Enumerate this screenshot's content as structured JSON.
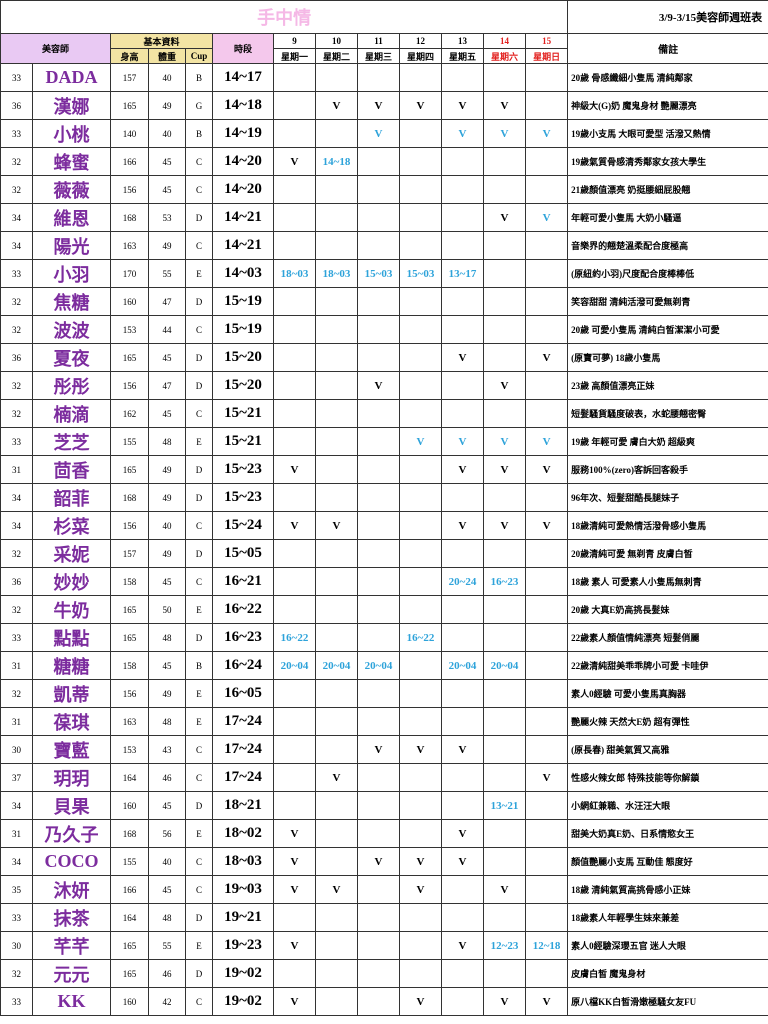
{
  "header": {
    "title": "手中情",
    "week": "3/9-3/15美容師週班表",
    "col_name": "美容師",
    "basic": "基本資料",
    "height": "身高",
    "weight": "體重",
    "cup": "Cup",
    "slot": "時段",
    "dates": [
      "9",
      "10",
      "11",
      "12",
      "13",
      "14",
      "15"
    ],
    "weekdays": [
      "星期一",
      "星期二",
      "星期三",
      "星期四",
      "星期五",
      "星期六",
      "星期日"
    ],
    "notes": "備註",
    "highlight_color": "#2ea3da"
  },
  "rows": [
    {
      "no": "33",
      "name": "DADA",
      "height": "157",
      "weight": "40",
      "cup": "B",
      "time": "14~17",
      "days": [
        null,
        null,
        null,
        null,
        null,
        null,
        null
      ],
      "blue": [],
      "note": "20歲 骨感纖細小隻馬 清純鄰家"
    },
    {
      "no": "36",
      "name": "漢娜",
      "height": "165",
      "weight": "49",
      "cup": "G",
      "time": "14~18",
      "days": [
        null,
        "V",
        "V",
        "V",
        "V",
        "V",
        null
      ],
      "blue": [],
      "note": "神級大(G)奶 魔鬼身材 艷麗漂亮"
    },
    {
      "no": "33",
      "name": "小桃",
      "height": "140",
      "weight": "40",
      "cup": "B",
      "time": "14~19",
      "days": [
        null,
        null,
        "V",
        null,
        "V",
        "V",
        "V"
      ],
      "blue": [
        2,
        4,
        5,
        6
      ],
      "note": "19歲小支馬 大眼可愛型  活潑又熱情"
    },
    {
      "no": "32",
      "name": "蜂蜜",
      "height": "166",
      "weight": "45",
      "cup": "C",
      "time": "14~20",
      "days": [
        "V",
        "14~18",
        null,
        null,
        null,
        null,
        null
      ],
      "blue": [
        1
      ],
      "note": "19歲氣質骨感清秀鄰家女孩大學生"
    },
    {
      "no": "32",
      "name": "薇薇",
      "height": "156",
      "weight": "45",
      "cup": "C",
      "time": "14~20",
      "days": [
        null,
        null,
        null,
        null,
        null,
        null,
        null
      ],
      "blue": [],
      "note": "21歲顏值漂亮 奶挺腰細屁股翹"
    },
    {
      "no": "34",
      "name": "維恩",
      "height": "168",
      "weight": "53",
      "cup": "D",
      "time": "14~21",
      "days": [
        null,
        null,
        null,
        null,
        null,
        "V",
        "V"
      ],
      "blue": [
        6
      ],
      "note": "年輕可愛小隻馬 大奶小騷逼"
    },
    {
      "no": "34",
      "name": "陽光",
      "height": "163",
      "weight": "49",
      "cup": "C",
      "time": "14~21",
      "days": [
        null,
        null,
        null,
        null,
        null,
        null,
        null
      ],
      "blue": [],
      "note": "音樂界的翹楚溫柔配合度極高"
    },
    {
      "no": "33",
      "name": "小羽",
      "height": "170",
      "weight": "55",
      "cup": "E",
      "time": "14~03",
      "days": [
        "18~03",
        "18~03",
        "15~03",
        "15~03",
        "13~17",
        null,
        null
      ],
      "blue": [
        0,
        1,
        2,
        3,
        4
      ],
      "note": "(原紐約小羽)尺度配合度棒棒低"
    },
    {
      "no": "32",
      "name": "焦糖",
      "height": "160",
      "weight": "47",
      "cup": "D",
      "time": "15~19",
      "days": [
        null,
        null,
        null,
        null,
        null,
        null,
        null
      ],
      "blue": [],
      "note": "笑容甜甜 清純活潑可愛無剃青"
    },
    {
      "no": "32",
      "name": "波波",
      "height": "153",
      "weight": "44",
      "cup": "C",
      "time": "15~19",
      "days": [
        null,
        null,
        null,
        null,
        null,
        null,
        null
      ],
      "blue": [],
      "note": "20歲 可愛小隻馬 清純白皙潔潔小可愛"
    },
    {
      "no": "36",
      "name": "夏夜",
      "height": "165",
      "weight": "45",
      "cup": "D",
      "time": "15~20",
      "days": [
        null,
        null,
        null,
        null,
        "V",
        null,
        "V"
      ],
      "blue": [],
      "note": "(原寶可夢) 18歲小隻馬"
    },
    {
      "no": "32",
      "name": "彤彤",
      "height": "156",
      "weight": "47",
      "cup": "D",
      "time": "15~20",
      "days": [
        null,
        null,
        "V",
        null,
        null,
        "V",
        null
      ],
      "blue": [],
      "note": "23歲 高顏值漂亮正妹"
    },
    {
      "no": "32",
      "name": "楠滴",
      "height": "162",
      "weight": "45",
      "cup": "C",
      "time": "15~21",
      "days": [
        null,
        null,
        null,
        null,
        null,
        null,
        null
      ],
      "blue": [],
      "note": "短髮騷貨騷度破表，水蛇腰翹密臀"
    },
    {
      "no": "33",
      "name": "芝芝",
      "height": "155",
      "weight": "48",
      "cup": "E",
      "time": "15~21",
      "days": [
        null,
        null,
        null,
        "V",
        "V",
        "V",
        "V"
      ],
      "blue": [
        3,
        4,
        5,
        6
      ],
      "note": "19歲 年輕可愛 膚白大奶 超級爽"
    },
    {
      "no": "31",
      "name": "茴香",
      "height": "165",
      "weight": "49",
      "cup": "D",
      "time": "15~23",
      "days": [
        "V",
        null,
        null,
        null,
        "V",
        "V",
        "V"
      ],
      "blue": [],
      "note": "服務100%(zero)客訴回客殺手"
    },
    {
      "no": "34",
      "name": "韶菲",
      "height": "168",
      "weight": "49",
      "cup": "D",
      "time": "15~23",
      "days": [
        null,
        null,
        null,
        null,
        null,
        null,
        null
      ],
      "blue": [],
      "note": "96年次、短髮甜酷長腿妹子"
    },
    {
      "no": "34",
      "name": "杉菜",
      "height": "156",
      "weight": "40",
      "cup": "C",
      "time": "15~24",
      "days": [
        "V",
        "V",
        null,
        null,
        "V",
        "V",
        "V"
      ],
      "blue": [],
      "note": "18歲清純可愛熱情活潑骨感小隻馬"
    },
    {
      "no": "32",
      "name": "采妮",
      "height": "157",
      "weight": "49",
      "cup": "D",
      "time": "15~05",
      "days": [
        null,
        null,
        null,
        null,
        null,
        null,
        null
      ],
      "blue": [],
      "note": "20歲清純可愛 無剃青 皮膚白皙"
    },
    {
      "no": "36",
      "name": "妙妙",
      "height": "158",
      "weight": "45",
      "cup": "C",
      "time": "16~21",
      "days": [
        null,
        null,
        null,
        null,
        "20~24",
        "16~23",
        null
      ],
      "blue": [
        4,
        5
      ],
      "note": "18歲 素人 可愛素人小隻馬無刺青"
    },
    {
      "no": "32",
      "name": "牛奶",
      "height": "165",
      "weight": "50",
      "cup": "E",
      "time": "16~22",
      "days": [
        null,
        null,
        null,
        null,
        null,
        null,
        null
      ],
      "blue": [],
      "note": "20歲 大真E奶高挑長髮妹"
    },
    {
      "no": "33",
      "name": "點點",
      "height": "165",
      "weight": "48",
      "cup": "D",
      "time": "16~23",
      "days": [
        "16~22",
        null,
        null,
        "16~22",
        null,
        null,
        null
      ],
      "blue": [
        0,
        3
      ],
      "note": "22歲素人顏值情純漂亮 短髮俏麗"
    },
    {
      "no": "31",
      "name": "糖糖",
      "height": "158",
      "weight": "45",
      "cup": "B",
      "time": "16~24",
      "days": [
        "20~04",
        "20~04",
        "20~04",
        null,
        "20~04",
        "20~04",
        null
      ],
      "blue": [
        0,
        1,
        2,
        4,
        5
      ],
      "note": "22歲清純甜美乖乖牌小可愛 卡哇伊"
    },
    {
      "no": "32",
      "name": "凱蒂",
      "height": "156",
      "weight": "49",
      "cup": "E",
      "time": "16~05",
      "days": [
        null,
        null,
        null,
        null,
        null,
        null,
        null
      ],
      "blue": [],
      "note": "素人0經驗 可愛小隻馬真胸器"
    },
    {
      "no": "31",
      "name": "葆琪",
      "height": "163",
      "weight": "48",
      "cup": "E",
      "time": "17~24",
      "days": [
        null,
        null,
        null,
        null,
        null,
        null,
        null
      ],
      "blue": [],
      "note": "艷麗火辣 天然大E奶 超有彈性"
    },
    {
      "no": "30",
      "name": "寶藍",
      "height": "153",
      "weight": "43",
      "cup": "C",
      "time": "17~24",
      "days": [
        null,
        null,
        "V",
        "V",
        "V",
        null,
        null
      ],
      "blue": [],
      "note": "(原長春) 甜美氣質又高雅"
    },
    {
      "no": "37",
      "name": "玥玥",
      "height": "164",
      "weight": "46",
      "cup": "C",
      "time": "17~24",
      "days": [
        null,
        "V",
        null,
        null,
        null,
        null,
        "V"
      ],
      "blue": [],
      "note": "性感火辣女郎 特殊技能等你解鎖"
    },
    {
      "no": "34",
      "name": "貝果",
      "height": "160",
      "weight": "45",
      "cup": "D",
      "time": "18~21",
      "days": [
        null,
        null,
        null,
        null,
        null,
        "13~21",
        null
      ],
      "blue": [
        5
      ],
      "note": "小網紅兼職、水汪汪大眼"
    },
    {
      "no": "31",
      "name": "乃久子",
      "height": "168",
      "weight": "56",
      "cup": "E",
      "time": "18~02",
      "days": [
        "V",
        null,
        null,
        null,
        "V",
        null,
        null
      ],
      "blue": [],
      "note": "甜美大奶真E奶、日系情慾女王"
    },
    {
      "no": "34",
      "name": "COCO",
      "height": "155",
      "weight": "40",
      "cup": "C",
      "time": "18~03",
      "days": [
        "V",
        null,
        "V",
        "V",
        "V",
        null,
        null
      ],
      "blue": [],
      "note": "顏值艷麗小支馬 互動佳 態度好"
    },
    {
      "no": "35",
      "name": "沐妍",
      "height": "166",
      "weight": "45",
      "cup": "C",
      "time": "19~03",
      "days": [
        "V",
        "V",
        null,
        "V",
        null,
        "V",
        null
      ],
      "blue": [],
      "note": "18歲 清純氣質高挑骨感小正妹"
    },
    {
      "no": "33",
      "name": "抹茶",
      "height": "164",
      "weight": "48",
      "cup": "D",
      "time": "19~21",
      "days": [
        null,
        null,
        null,
        null,
        null,
        null,
        null
      ],
      "blue": [],
      "note": "18歲素人年輕學生妹來兼差"
    },
    {
      "no": "30",
      "name": "芊芊",
      "height": "165",
      "weight": "55",
      "cup": "E",
      "time": "19~23",
      "days": [
        "V",
        null,
        null,
        null,
        "V",
        "12~23",
        "12~18"
      ],
      "blue": [
        5,
        6
      ],
      "note": "素人0經驗深瓔五官 迷人大眼"
    },
    {
      "no": "32",
      "name": "元元",
      "height": "165",
      "weight": "46",
      "cup": "D",
      "time": "19~02",
      "days": [
        null,
        null,
        null,
        null,
        null,
        null,
        null
      ],
      "blue": [],
      "note": "皮膚白皙 魔鬼身材"
    },
    {
      "no": "33",
      "name": "KK",
      "height": "160",
      "weight": "42",
      "cup": "C",
      "time": "19~02",
      "days": [
        "V",
        null,
        null,
        "V",
        null,
        "V",
        "V"
      ],
      "blue": [],
      "note": "原八檔KK白皙滑嫩極騷女友FU"
    }
  ]
}
